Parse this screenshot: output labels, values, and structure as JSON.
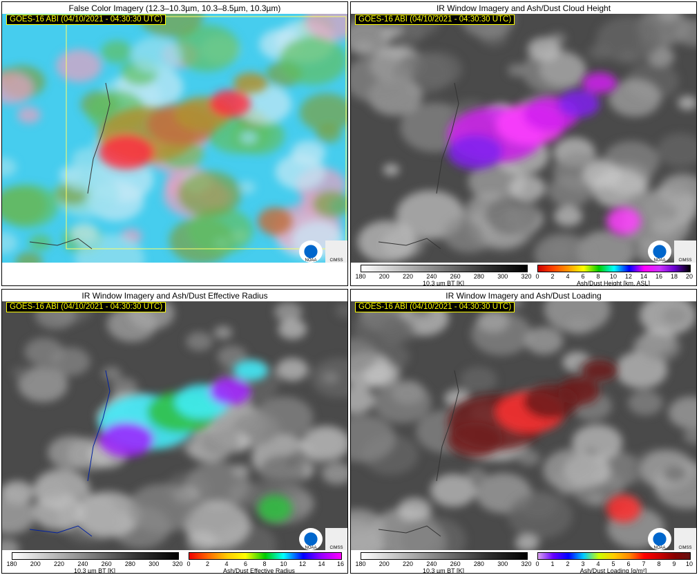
{
  "panels": [
    {
      "title": "False Color Imagery (12.3–10.3µm, 10.3–8.5µm, 10.3µm)",
      "stamp": "GOES-16 ABI (04/10/2021 - 04:30:30 UTC)",
      "logos": [
        "NOAA",
        "CIMSS"
      ],
      "colorbars": []
    },
    {
      "title": "IR Window Imagery and Ash/Dust Cloud Height",
      "stamp": "GOES-16 ABI (04/10/2021 - 04:30:30 UTC)",
      "logos": [
        "NOAA",
        "CIMSS"
      ],
      "colorbars": [
        {
          "ticks": [
            180,
            200,
            220,
            240,
            260,
            280,
            300,
            320
          ],
          "label": "10.3 µm BT [K]"
        },
        {
          "ticks": [
            0,
            2,
            4,
            6,
            8,
            10,
            12,
            14,
            16,
            18,
            20
          ],
          "label": "Ash/Dust Height [km, ASL]"
        }
      ]
    },
    {
      "title": "IR Window Imagery and Ash/Dust Effective Radius",
      "stamp": "GOES-16 ABI (04/10/2021 - 04:30:30 UTC)",
      "logos": [
        "NOAA",
        "CIMSS"
      ],
      "colorbars": [
        {
          "ticks": [
            180,
            200,
            220,
            240,
            260,
            280,
            300,
            320
          ],
          "label": "10.3 µm BT [K]"
        },
        {
          "ticks": [
            0,
            2,
            4,
            6,
            8,
            10,
            12,
            14,
            16
          ],
          "label": "Ash/Dust Effective Radius [µm]"
        }
      ]
    },
    {
      "title": "IR Window Imagery and Ash/Dust Loading",
      "stamp": "GOES-16 ABI (04/10/2021 - 04:30:30 UTC)",
      "logos": [
        "NOAA",
        "CIMSS"
      ],
      "colorbars": [
        {
          "ticks": [
            180,
            200,
            220,
            240,
            260,
            280,
            300,
            320
          ],
          "label": "10.3 µm BT [K]"
        },
        {
          "ticks": [
            0,
            1,
            2,
            3,
            4,
            5,
            6,
            7,
            8,
            9,
            10
          ],
          "label": "Ash/Dust Loading [g/m²]"
        }
      ]
    }
  ]
}
